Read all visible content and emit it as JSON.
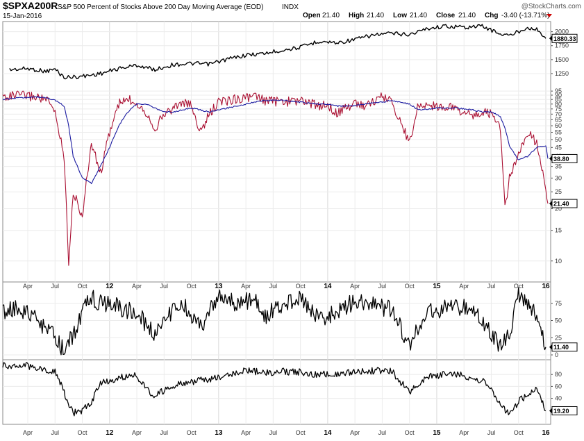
{
  "header": {
    "symbol": "$SPXA200R",
    "description": "S&P 500 Percent of Stocks Above 200 Day Moving Average (EOD)",
    "exchange": "INDX",
    "date": "15-Jan-2016",
    "logo": "@StockCharts.com",
    "quote": [
      {
        "label": "Open",
        "value": "21.40"
      },
      {
        "label": "High",
        "value": "21.40"
      },
      {
        "label": "Low",
        "value": "21.40"
      },
      {
        "label": "Close",
        "value": "21.40"
      },
      {
        "label": "Chg",
        "value": "-3.40 (-13.71%)"
      }
    ],
    "chg_marker_color": "#cc0000"
  },
  "chart_data": [
    {
      "type": "line",
      "panel": "price-overlay",
      "title": "",
      "x": [
        "2011-02",
        "2011-04",
        "2011-06",
        "2011-07",
        "2011-08",
        "2011-10",
        "2011-12",
        "2012-02",
        "2012-04",
        "2012-06",
        "2012-08",
        "2012-10",
        "2012-12",
        "2013-02",
        "2013-04",
        "2013-06",
        "2013-08",
        "2013-10",
        "2013-12",
        "2014-02",
        "2014-04",
        "2014-06",
        "2014-08",
        "2014-10",
        "2014-12",
        "2015-02",
        "2015-04",
        "2015-06",
        "2015-08",
        "2015-09",
        "2015-11",
        "2015-12",
        "2016-01"
      ],
      "series": [
        {
          "values": [
            1320,
            1340,
            1290,
            1330,
            1180,
            1200,
            1250,
            1340,
            1400,
            1320,
            1410,
            1430,
            1420,
            1510,
            1580,
            1610,
            1670,
            1720,
            1830,
            1800,
            1860,
            1940,
            1970,
            1950,
            2060,
            2100,
            2080,
            2100,
            1960,
            1930,
            2080,
            2040,
            1880
          ]
        }
      ],
      "last_label": "1880.33",
      "y_ticks": [
        1250,
        1500,
        1750,
        2000
      ],
      "ylim": [
        1100,
        2120
      ]
    },
    {
      "type": "line",
      "panel": "main",
      "title": "",
      "x": [
        "2011-01",
        "2011-03",
        "2011-05",
        "2011-06",
        "2011-07",
        "2011-08",
        "2011-08b",
        "2011-09",
        "2011-10",
        "2011-11",
        "2011-12",
        "2012-01",
        "2012-02",
        "2012-03",
        "2012-04",
        "2012-05",
        "2012-06",
        "2012-07",
        "2012-08",
        "2012-09",
        "2012-10",
        "2012-11",
        "2012-12",
        "2013-01",
        "2013-03",
        "2013-05",
        "2013-06",
        "2013-08",
        "2013-10",
        "2013-12",
        "2014-01",
        "2014-02",
        "2014-04",
        "2014-05",
        "2014-07",
        "2014-08",
        "2014-10",
        "2014-11",
        "2015-01",
        "2015-03",
        "2015-05",
        "2015-06",
        "2015-07",
        "2015-08",
        "2015-08b",
        "2015-09",
        "2015-10",
        "2015-11",
        "2015-12",
        "2016-01",
        "2016-01b"
      ],
      "series": [
        {
          "name": "",
          "color": "#aa1133",
          "values": [
            88,
            90,
            88,
            85,
            72,
            40,
            10,
            25,
            18,
            48,
            32,
            55,
            80,
            85,
            82,
            72,
            58,
            70,
            76,
            82,
            78,
            55,
            70,
            82,
            86,
            88,
            84,
            82,
            84,
            78,
            80,
            70,
            82,
            78,
            88,
            84,
            48,
            80,
            78,
            76,
            68,
            72,
            70,
            58,
            20,
            30,
            40,
            55,
            48,
            26,
            21.4
          ]
        },
        {
          "name": "",
          "color": "#1a1aa0",
          "values": [
            85,
            87,
            88,
            87,
            84,
            78,
            60,
            40,
            30,
            28,
            35,
            45,
            60,
            72,
            80,
            80,
            76,
            72,
            72,
            74,
            76,
            74,
            72,
            74,
            78,
            82,
            84,
            84,
            82,
            80,
            80,
            78,
            78,
            80,
            82,
            84,
            80,
            74,
            76,
            76,
            74,
            72,
            72,
            68,
            58,
            46,
            38,
            40,
            45,
            46,
            38.8
          ]
        }
      ],
      "last_labels": [
        "38.80",
        "21.40"
      ],
      "y_ticks": [
        10,
        15,
        20,
        25,
        30,
        35,
        40,
        45,
        50,
        55,
        60,
        65,
        70,
        75,
        80,
        85,
        90,
        95
      ],
      "ylim": [
        8,
        96
      ],
      "log_scale": true
    },
    {
      "type": "line",
      "panel": "indicator-1",
      "title": "",
      "x": [
        "2011-01",
        "2011-03",
        "2011-05",
        "2011-07",
        "2011-08",
        "2011-09",
        "2011-10",
        "2011-11",
        "2011-12",
        "2012-02",
        "2012-04",
        "2012-06",
        "2012-07",
        "2012-09",
        "2012-11",
        "2013-01",
        "2013-03",
        "2013-05",
        "2013-06",
        "2013-08",
        "2013-10",
        "2013-12",
        "2014-02",
        "2014-04",
        "2014-06",
        "2014-08",
        "2014-10",
        "2014-12",
        "2015-02",
        "2015-04",
        "2015-06",
        "2015-08",
        "2015-09",
        "2015-10",
        "2015-11",
        "2015-12",
        "2016-01"
      ],
      "series": [
        {
          "values": [
            62,
            70,
            50,
            25,
            5,
            30,
            60,
            85,
            75,
            70,
            60,
            30,
            55,
            75,
            40,
            85,
            75,
            80,
            55,
            75,
            80,
            55,
            60,
            80,
            75,
            65,
            15,
            60,
            70,
            70,
            50,
            10,
            30,
            85,
            70,
            60,
            11.4
          ]
        }
      ],
      "last_label": "11.40",
      "y_ticks": [
        0,
        25,
        50,
        75
      ],
      "ylim": [
        -3,
        100
      ]
    },
    {
      "type": "line",
      "panel": "indicator-2",
      "title": "",
      "x": [
        "2011-01",
        "2011-03",
        "2011-05",
        "2011-07",
        "2011-08",
        "2011-09",
        "2011-10",
        "2011-11",
        "2011-12",
        "2012-02",
        "2012-04",
        "2012-05",
        "2012-06",
        "2012-08",
        "2012-10",
        "2012-12",
        "2013-02",
        "2013-04",
        "2013-06",
        "2013-08",
        "2013-10",
        "2013-12",
        "2014-02",
        "2014-04",
        "2014-06",
        "2014-08",
        "2014-10",
        "2014-12",
        "2015-02",
        "2015-04",
        "2015-06",
        "2015-07",
        "2015-08",
        "2015-09",
        "2015-10",
        "2015-11",
        "2015-12",
        "2016-01"
      ],
      "series": [
        {
          "values": [
            95,
            96,
            92,
            85,
            50,
            15,
            20,
            35,
            65,
            75,
            78,
            55,
            45,
            62,
            68,
            72,
            80,
            88,
            82,
            85,
            84,
            80,
            82,
            84,
            86,
            86,
            50,
            76,
            80,
            78,
            70,
            55,
            30,
            12,
            35,
            45,
            55,
            19.2
          ]
        }
      ],
      "last_label": "19.20",
      "y_ticks": [
        40,
        60,
        80
      ],
      "ylim": [
        0,
        100
      ]
    }
  ],
  "x_axis": {
    "labels": [
      {
        "text": "Apr",
        "year": false
      },
      {
        "text": "Jul",
        "year": false
      },
      {
        "text": "Oct",
        "year": false
      },
      {
        "text": "12",
        "year": true
      },
      {
        "text": "Apr",
        "year": false
      },
      {
        "text": "Jul",
        "year": false
      },
      {
        "text": "Oct",
        "year": false
      },
      {
        "text": "13",
        "year": true
      },
      {
        "text": "Apr",
        "year": false
      },
      {
        "text": "Jul",
        "year": false
      },
      {
        "text": "Oct",
        "year": false
      },
      {
        "text": "14",
        "year": true
      },
      {
        "text": "Apr",
        "year": false
      },
      {
        "text": "Jul",
        "year": false
      },
      {
        "text": "Oct",
        "year": false
      },
      {
        "text": "15",
        "year": true
      },
      {
        "text": "Apr",
        "year": false
      },
      {
        "text": "Jul",
        "year": false
      },
      {
        "text": "Oct",
        "year": false
      },
      {
        "text": "16",
        "year": true
      }
    ]
  }
}
